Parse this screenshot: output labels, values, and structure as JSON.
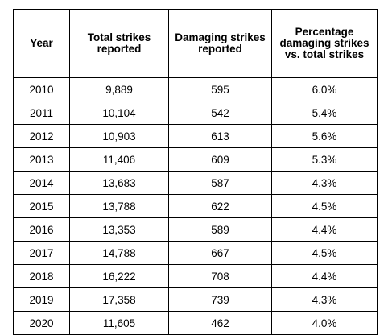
{
  "table": {
    "headers": {
      "year": "Year",
      "total": "Total strikes reported",
      "damaging": "Damaging strikes reported",
      "percent": "Percentage damaging strikes vs. total strikes"
    },
    "rows": [
      {
        "year": "2010",
        "total": "9,889",
        "damaging": "595",
        "percent": "6.0%"
      },
      {
        "year": "2011",
        "total": "10,104",
        "damaging": "542",
        "percent": "5.4%"
      },
      {
        "year": "2012",
        "total": "10,903",
        "damaging": "613",
        "percent": "5.6%"
      },
      {
        "year": "2013",
        "total": "11,406",
        "damaging": "609",
        "percent": "5.3%"
      },
      {
        "year": "2014",
        "total": "13,683",
        "damaging": "587",
        "percent": "4.3%"
      },
      {
        "year": "2015",
        "total": "13,788",
        "damaging": "622",
        "percent": "4.5%"
      },
      {
        "year": "2016",
        "total": "13,353",
        "damaging": "589",
        "percent": "4.4%"
      },
      {
        "year": "2017",
        "total": "14,788",
        "damaging": "667",
        "percent": "4.5%"
      },
      {
        "year": "2018",
        "total": "16,222",
        "damaging": "708",
        "percent": "4.4%"
      },
      {
        "year": "2019",
        "total": "17,358",
        "damaging": "739",
        "percent": "4.3%"
      },
      {
        "year": "2020",
        "total": "11,605",
        "damaging": "462",
        "percent": "4.0%"
      }
    ]
  }
}
